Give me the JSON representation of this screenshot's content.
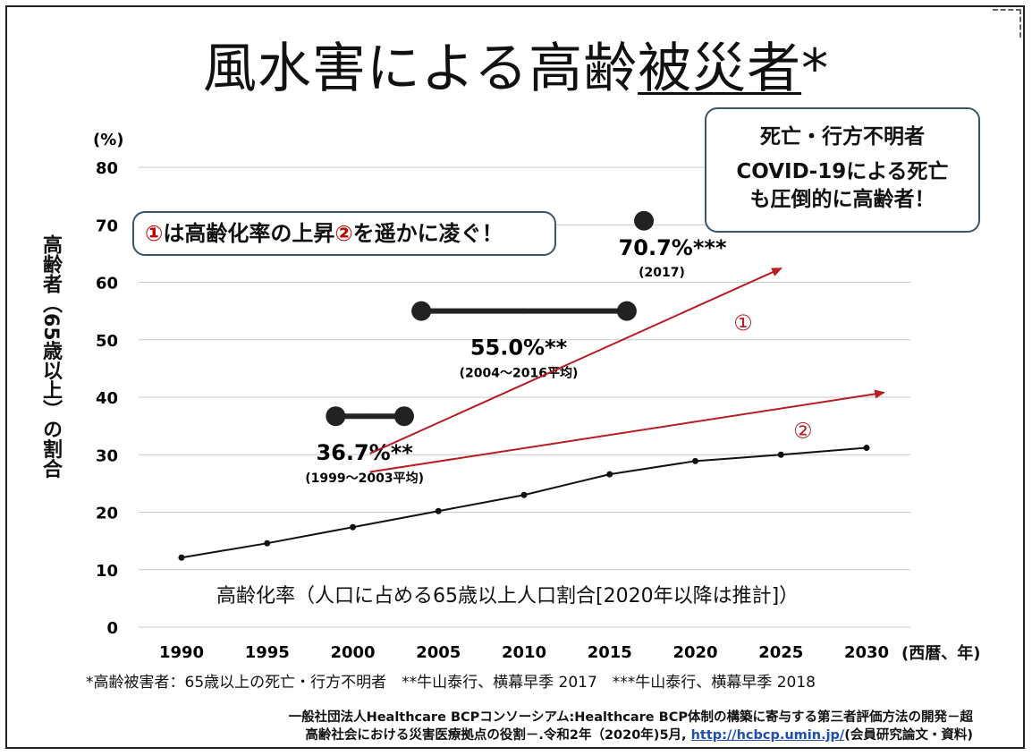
{
  "title_plain": "風水害による高齢",
  "title_underlined": "被災者",
  "title_suffix": "*",
  "callout_left": {
    "num1": "①",
    "text1": "は高齢化率の上昇",
    "num2": "②",
    "text2": "を遥かに凌ぐ！"
  },
  "callout_right": {
    "line1": "死亡・行方不明者",
    "line2": "COVID‐19による死亡",
    "line3": "も圧倒的に高齢者！"
  },
  "chart_data": {
    "type": "line",
    "y_unit_label": "(%)",
    "ylabel": "高齢者（65歳以上）の割合",
    "xunit": "(西暦、年)",
    "ylim": [
      0,
      80
    ],
    "yticks": [
      0,
      10,
      20,
      30,
      40,
      50,
      60,
      70,
      80
    ],
    "xlim": [
      1990,
      2030
    ],
    "xticks": [
      1990,
      1995,
      2000,
      2005,
      2010,
      2015,
      2020,
      2025,
      2030
    ],
    "grid": true,
    "series": [
      {
        "name": "高齢化率（人口に占める65歳以上人口割合[2020年以降は推計]）",
        "x": [
          1990,
          1995,
          2000,
          2005,
          2010,
          2015,
          2020,
          2025,
          2030
        ],
        "y": [
          12.1,
          14.6,
          17.4,
          20.2,
          23.0,
          26.6,
          28.9,
          30.0,
          31.2
        ]
      }
    ],
    "ranges": [
      {
        "x_start": 1999,
        "x_end": 2003,
        "value": 36.7,
        "label": "36.7%**",
        "sublabel": "(1999～2003平均)"
      },
      {
        "x_start": 2004,
        "x_end": 2016,
        "value": 55.0,
        "label": "55.0%**",
        "sublabel": "(2004～2016平均)"
      }
    ],
    "points": [
      {
        "x": 2017,
        "value": 70.7,
        "label": "70.7%***",
        "sublabel": "(2017)"
      }
    ],
    "trend_arrows": [
      {
        "label": "①",
        "from": [
          2001,
          30.2
        ],
        "to": [
          2025,
          62.4
        ]
      },
      {
        "label": "②",
        "from": [
          2001,
          27.0
        ],
        "to": [
          2031,
          40.8
        ]
      }
    ],
    "colors": {
      "line": "#111111",
      "arrow": "#b81d22",
      "grid": "#c8c8c8"
    }
  },
  "footnote": "*高齢被害者：65歳以上の死亡・行方不明者　**牛山泰行、横幕早季 2017　***牛山泰行、横幕早季 2018",
  "source": {
    "line1": "一般社団法人Healthcare BCPコンソーシアム:Healthcare BCP体制の構築に寄与する第三者評価方法の開発－超",
    "line2_prefix": "高齢社会における災害医療拠点の役割－.令和2年（2020年)5月,",
    "link": "http://hcbcp.umin.jp/",
    "line2_suffix": "(会員研究論文・資料)"
  }
}
